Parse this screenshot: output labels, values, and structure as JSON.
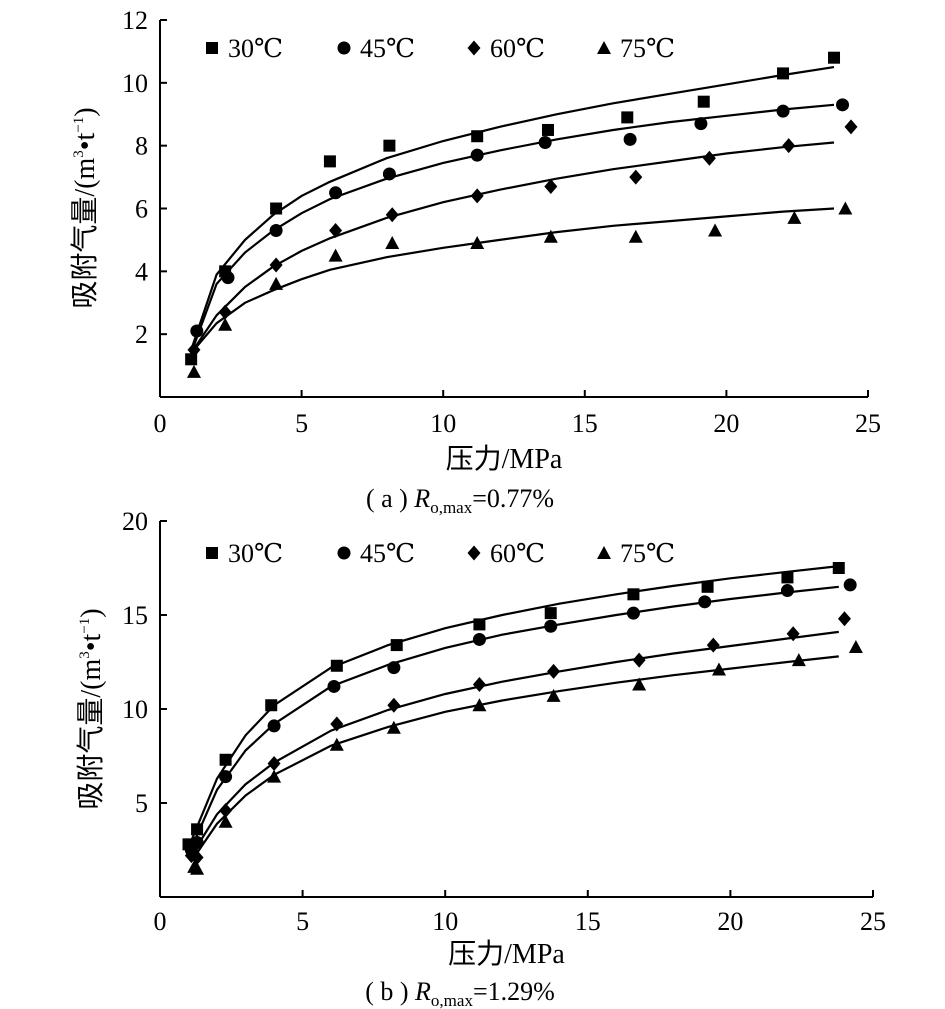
{
  "chart_data": [
    {
      "type": "scatter",
      "panel": "a",
      "caption": {
        "prefix": "( a ) ",
        "symbol": "R",
        "subscript": "o,max",
        "suffix": "=0.77%"
      },
      "xlabel": "压力/MPa",
      "ylabel": {
        "main": "吸附气量/(m",
        "sup1": "3",
        "mid": "•t",
        "sup2": "−1",
        "end": ")"
      },
      "xlim": [
        0,
        25
      ],
      "ylim": [
        0,
        12
      ],
      "xticks": [
        0,
        5,
        10,
        15,
        20,
        25
      ],
      "yticks": [
        2,
        4,
        6,
        8,
        10,
        12
      ],
      "grid": false,
      "legend_position": "top",
      "series": [
        {
          "name": "30℃",
          "marker": "square",
          "x": [
            1.1,
            2.3,
            4.1,
            6.0,
            8.1,
            11.2,
            13.7,
            16.5,
            19.2,
            22.0,
            23.8
          ],
          "y": [
            1.2,
            4.0,
            6.0,
            7.5,
            8.0,
            8.3,
            8.5,
            8.9,
            9.4,
            10.3,
            10.8
          ],
          "fit_x": [
            1.1,
            2,
            3,
            4,
            5,
            6,
            8,
            10,
            12,
            14,
            16,
            18,
            20,
            22,
            23.8
          ],
          "fit_y": [
            1.5,
            3.9,
            5.0,
            5.8,
            6.4,
            6.85,
            7.6,
            8.15,
            8.6,
            9.0,
            9.35,
            9.65,
            9.95,
            10.25,
            10.5
          ]
        },
        {
          "name": "45℃",
          "marker": "circle",
          "x": [
            1.3,
            2.4,
            4.1,
            6.2,
            8.1,
            11.2,
            13.6,
            16.6,
            19.1,
            22.0,
            24.1
          ],
          "y": [
            2.1,
            3.8,
            5.3,
            6.5,
            7.1,
            7.7,
            8.1,
            8.2,
            8.7,
            9.1,
            9.3
          ],
          "fit_x": [
            1.1,
            2,
            3,
            4,
            5,
            6,
            8,
            10,
            12,
            14,
            16,
            18,
            20,
            22,
            23.8
          ],
          "fit_y": [
            1.4,
            3.6,
            4.6,
            5.3,
            5.85,
            6.3,
            6.95,
            7.45,
            7.85,
            8.2,
            8.5,
            8.75,
            8.95,
            9.15,
            9.3
          ]
        },
        {
          "name": "60℃",
          "marker": "diamond",
          "x": [
            1.2,
            2.3,
            4.1,
            6.2,
            8.2,
            11.2,
            13.8,
            16.8,
            19.4,
            22.2,
            24.4
          ],
          "y": [
            1.5,
            2.7,
            4.2,
            5.3,
            5.8,
            6.4,
            6.7,
            7.0,
            7.6,
            8.0,
            8.6
          ],
          "fit_x": [
            1.1,
            2,
            3,
            4,
            5,
            6,
            8,
            10,
            12,
            14,
            16,
            18,
            20,
            22,
            23.8
          ],
          "fit_y": [
            1.4,
            2.6,
            3.5,
            4.15,
            4.65,
            5.05,
            5.7,
            6.2,
            6.6,
            6.95,
            7.25,
            7.5,
            7.75,
            7.95,
            8.1
          ]
        },
        {
          "name": "75℃",
          "marker": "triangle",
          "x": [
            1.2,
            2.3,
            4.1,
            6.2,
            8.2,
            11.2,
            13.8,
            16.8,
            19.6,
            22.4,
            24.2
          ],
          "y": [
            0.8,
            2.3,
            3.6,
            4.5,
            4.9,
            4.9,
            5.1,
            5.1,
            5.3,
            5.7,
            6.0
          ],
          "fit_x": [
            1.1,
            2,
            3,
            4,
            5,
            6,
            8,
            10,
            12,
            14,
            16,
            18,
            20,
            22,
            23.8
          ],
          "fit_y": [
            1.4,
            2.35,
            3.0,
            3.4,
            3.75,
            4.05,
            4.45,
            4.75,
            5.0,
            5.25,
            5.45,
            5.6,
            5.75,
            5.9,
            6.0
          ]
        }
      ]
    },
    {
      "type": "scatter",
      "panel": "b",
      "caption": {
        "prefix": "( b ) ",
        "symbol": "R",
        "subscript": "o,max",
        "suffix": "=1.29%"
      },
      "xlabel": "压力/MPa",
      "ylabel": {
        "main": "吸附气量/(m",
        "sup1": "3",
        "mid": "•t",
        "sup2": "−1",
        "end": ")"
      },
      "xlim": [
        0,
        25
      ],
      "ylim": [
        0,
        20
      ],
      "xticks": [
        0,
        5,
        10,
        15,
        20,
        25
      ],
      "yticks": [
        5,
        10,
        15,
        20
      ],
      "grid": false,
      "legend_position": "top",
      "series": [
        {
          "name": "30℃",
          "marker": "square",
          "x": [
            1.0,
            1.3,
            2.3,
            3.9,
            6.2,
            8.3,
            11.2,
            13.7,
            16.6,
            19.2,
            22.0,
            23.8
          ],
          "y": [
            2.8,
            3.6,
            7.3,
            10.2,
            12.3,
            13.4,
            14.5,
            15.1,
            16.1,
            16.5,
            17.0,
            17.5
          ],
          "fit_x": [
            1.1,
            2,
            3,
            4,
            6,
            8,
            10,
            12,
            14,
            16,
            18,
            20,
            22,
            23.8
          ],
          "fit_y": [
            3.0,
            6.3,
            8.6,
            10.2,
            12.2,
            13.4,
            14.3,
            15.0,
            15.6,
            16.1,
            16.55,
            16.95,
            17.3,
            17.6
          ]
        },
        {
          "name": "45℃",
          "marker": "circle",
          "x": [
            1.1,
            1.3,
            2.3,
            4.0,
            6.1,
            8.2,
            11.2,
            13.7,
            16.6,
            19.1,
            22.0,
            24.2
          ],
          "y": [
            2.5,
            2.9,
            6.4,
            9.1,
            11.2,
            12.2,
            13.7,
            14.4,
            15.1,
            15.7,
            16.3,
            16.6
          ],
          "fit_x": [
            1.1,
            2,
            3,
            4,
            6,
            8,
            10,
            12,
            14,
            16,
            18,
            20,
            22,
            23.8
          ],
          "fit_y": [
            2.6,
            5.7,
            7.8,
            9.2,
            11.2,
            12.35,
            13.25,
            13.95,
            14.5,
            15.0,
            15.45,
            15.85,
            16.2,
            16.5
          ]
        },
        {
          "name": "60℃",
          "marker": "diamond",
          "x": [
            1.1,
            1.3,
            2.3,
            4.0,
            6.2,
            8.2,
            11.2,
            13.8,
            16.8,
            19.4,
            22.2,
            24.0
          ],
          "y": [
            2.2,
            2.1,
            4.6,
            7.1,
            9.2,
            10.2,
            11.3,
            12.0,
            12.6,
            13.4,
            14.0,
            14.8
          ],
          "fit_x": [
            1.1,
            2,
            3,
            4,
            6,
            8,
            10,
            12,
            14,
            16,
            18,
            20,
            22,
            23.8
          ],
          "fit_y": [
            2.2,
            4.4,
            6.0,
            7.15,
            8.85,
            9.95,
            10.8,
            11.45,
            12.0,
            12.5,
            12.95,
            13.35,
            13.75,
            14.1
          ]
        },
        {
          "name": "75℃",
          "marker": "triangle",
          "x": [
            1.2,
            1.3,
            2.3,
            4.0,
            6.2,
            8.2,
            11.2,
            13.8,
            16.8,
            19.6,
            22.4,
            24.4
          ],
          "y": [
            1.6,
            1.5,
            4.0,
            6.4,
            8.1,
            9.0,
            10.2,
            10.7,
            11.3,
            12.1,
            12.6,
            13.3
          ],
          "fit_x": [
            1.1,
            2,
            3,
            4,
            6,
            8,
            10,
            12,
            14,
            16,
            18,
            20,
            22,
            23.8
          ],
          "fit_y": [
            1.9,
            3.9,
            5.4,
            6.5,
            8.05,
            9.05,
            9.85,
            10.45,
            10.95,
            11.4,
            11.8,
            12.15,
            12.5,
            12.8
          ]
        }
      ]
    }
  ]
}
